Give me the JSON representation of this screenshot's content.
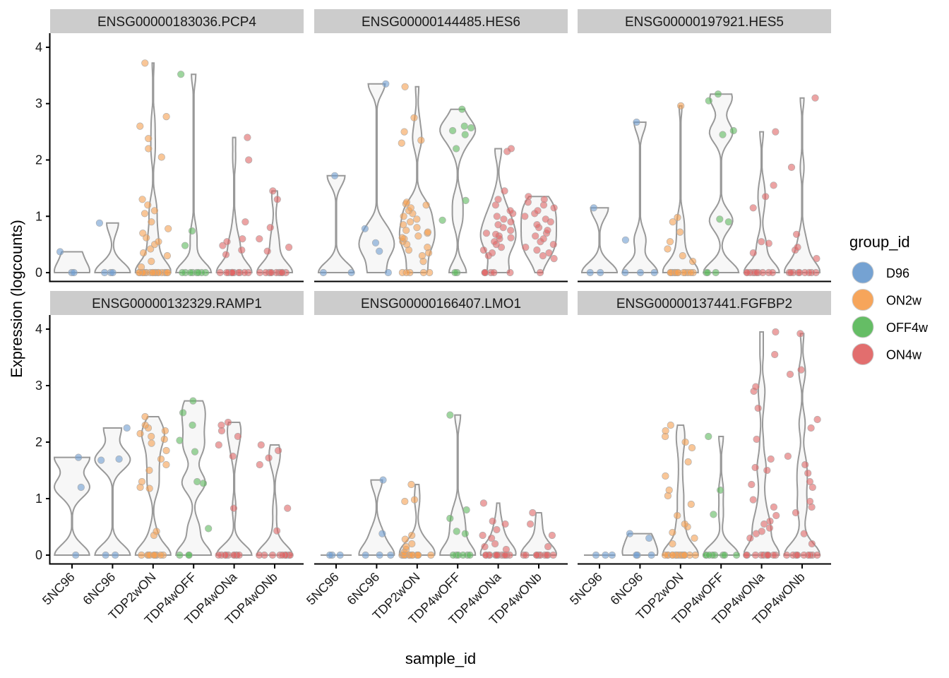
{
  "chart_data": {
    "type": "violin",
    "xlabel": "sample_id",
    "ylabel": "Expression (logcounts)",
    "ylim": [
      -0.15,
      4.25
    ],
    "yticks": [
      0,
      1,
      2,
      3,
      4
    ],
    "samples": [
      "5NC96",
      "6NC96",
      "TDP2wON",
      "TDP4wOFF",
      "TDP4wONa",
      "TDP4wONb"
    ],
    "sample_groups": [
      "D96",
      "D96",
      "ON2w",
      "OFF4w",
      "ON4w",
      "ON4w"
    ],
    "legend": {
      "title": "group_id",
      "entries": [
        {
          "label": "D96",
          "color": "#6E9DD0"
        },
        {
          "label": "ON2w",
          "color": "#F5A052"
        },
        {
          "label": "OFF4w",
          "color": "#5DB95D"
        },
        {
          "label": "ON4w",
          "color": "#E06666"
        }
      ]
    },
    "panels": [
      {
        "title": "ENSG00000183036.PCP4",
        "values": [
          [
            0,
            0,
            0.37
          ],
          [
            0,
            0,
            0,
            0.88
          ],
          [
            0,
            0,
            0,
            0,
            0,
            0,
            0,
            0,
            0,
            0,
            0,
            0,
            0,
            0,
            0,
            0,
            0,
            0.1,
            0.2,
            0.3,
            0.35,
            0.42,
            0.5,
            0.55,
            0.62,
            0.7,
            0.78,
            0.9,
            1.05,
            1.1,
            1.2,
            1.3,
            2.05,
            2.2,
            2.38,
            2.6,
            2.77,
            3.72
          ],
          [
            0,
            0,
            0,
            0,
            0,
            0,
            0,
            0,
            0.48,
            0.74,
            3.52
          ],
          [
            0,
            0,
            0,
            0,
            0,
            0,
            0,
            0,
            0,
            0,
            0,
            0,
            0,
            0.32,
            0.4,
            0.48,
            0.55,
            0.6,
            0.9,
            2.0,
            2.4
          ],
          [
            0,
            0,
            0,
            0,
            0,
            0,
            0,
            0,
            0,
            0,
            0,
            0.38,
            0.45,
            0.6,
            0.8,
            1.3,
            1.45
          ]
        ]
      },
      {
        "title": "ENSG00000144485.HES6",
        "values": [
          [
            0,
            0,
            1.72
          ],
          [
            0,
            0.38,
            0.53,
            0.78,
            3.35
          ],
          [
            0,
            0,
            0,
            0,
            0,
            0.2,
            0.3,
            0.35,
            0.4,
            0.45,
            0.5,
            0.55,
            0.6,
            0.62,
            0.65,
            0.7,
            0.72,
            0.75,
            0.8,
            0.85,
            0.9,
            0.95,
            1.0,
            1.05,
            1.1,
            1.15,
            1.2,
            1.22,
            1.25,
            2.3,
            2.35,
            2.5,
            2.75,
            3.3
          ],
          [
            0,
            0,
            0.93,
            1.28,
            2.2,
            2.45,
            2.52,
            2.57,
            2.6,
            2.9
          ],
          [
            0,
            0,
            0,
            0,
            0,
            0,
            0.3,
            0.35,
            0.4,
            0.45,
            0.5,
            0.55,
            0.6,
            0.62,
            0.65,
            0.68,
            0.7,
            0.75,
            0.8,
            0.85,
            0.9,
            0.95,
            1.0,
            1.05,
            1.1,
            1.2,
            1.3,
            1.45,
            2.15,
            2.2
          ],
          [
            0,
            0.25,
            0.3,
            0.35,
            0.4,
            0.45,
            0.5,
            0.55,
            0.6,
            0.65,
            0.7,
            0.75,
            0.8,
            0.85,
            0.9,
            0.95,
            1.0,
            1.05,
            1.1,
            1.15,
            1.2,
            1.25,
            1.3,
            1.35
          ]
        ]
      },
      {
        "title": "ENSG00000197921.HES5",
        "values": [
          [
            0,
            0,
            1.15
          ],
          [
            0,
            0,
            0,
            0.58,
            2.67
          ],
          [
            0,
            0,
            0,
            0,
            0,
            0,
            0,
            0,
            0,
            0,
            0,
            0,
            0.2,
            0.3,
            0.42,
            0.55,
            0.72,
            0.9,
            0.98,
            2.96
          ],
          [
            0,
            0,
            0,
            0.9,
            0.95,
            2.45,
            2.52,
            3.05,
            3.17
          ],
          [
            0,
            0,
            0,
            0,
            0,
            0,
            0,
            0,
            0,
            0,
            0.35,
            0.52,
            0.55,
            1.15,
            1.35,
            1.55,
            2.5
          ],
          [
            0,
            0,
            0,
            0,
            0,
            0,
            0,
            0,
            0,
            0.25,
            0.4,
            0.45,
            0.68,
            1.87,
            3.1
          ]
        ]
      },
      {
        "title": "ENSG00000132329.RAMP1",
        "values": [
          [
            0,
            1.2,
            1.73
          ],
          [
            0,
            0,
            1.68,
            1.7,
            2.25
          ],
          [
            0,
            0,
            0,
            0,
            0,
            0,
            0,
            0,
            0,
            0,
            0.35,
            0.42,
            1.18,
            1.2,
            1.3,
            1.5,
            1.6,
            1.7,
            1.85,
            1.98,
            2.05,
            2.1,
            2.15,
            2.2,
            2.25,
            2.3,
            2.45
          ],
          [
            0,
            0,
            0,
            0.47,
            1.27,
            1.3,
            1.83,
            2.03,
            2.3,
            2.52,
            2.73
          ],
          [
            0,
            0,
            0,
            0,
            0,
            0,
            0,
            0,
            0,
            0,
            0.83,
            1.75,
            1.95,
            2.1,
            2.2,
            2.3,
            2.35
          ],
          [
            0,
            0,
            0,
            0,
            0,
            0,
            0,
            0,
            0,
            0,
            0.43,
            0.83,
            1.6,
            1.72,
            1.85,
            1.95
          ]
        ]
      },
      {
        "title": "ENSG00000166407.LMO1",
        "values": [
          [
            0,
            0,
            0
          ],
          [
            0,
            0,
            0,
            0.38,
            1.33
          ],
          [
            0,
            0,
            0,
            0,
            0,
            0,
            0,
            0,
            0,
            0,
            0,
            0,
            0.05,
            0.1,
            0.15,
            0.2,
            0.28,
            0.35,
            0.95,
            0.98,
            1.25
          ],
          [
            0,
            0,
            0,
            0,
            0,
            0,
            0.38,
            0.42,
            0.65,
            0.8,
            2.48
          ],
          [
            0,
            0,
            0,
            0,
            0,
            0,
            0,
            0,
            0,
            0,
            0,
            0,
            0,
            0,
            0.1,
            0.15,
            0.2,
            0.3,
            0.35,
            0.45,
            0.55,
            0.6,
            0.92
          ],
          [
            0,
            0,
            0,
            0,
            0,
            0,
            0,
            0,
            0,
            0,
            0.15,
            0.35,
            0.55,
            0.75
          ]
        ]
      },
      {
        "title": "ENSG00000137441.FGFBP2",
        "values": [
          [
            0,
            0,
            0
          ],
          [
            0,
            0,
            0,
            0.3,
            0.38
          ],
          [
            0,
            0,
            0,
            0,
            0,
            0,
            0,
            0,
            0,
            0,
            0,
            0,
            0,
            0,
            0,
            0.2,
            0.3,
            0.4,
            0.5,
            0.55,
            0.7,
            0.9,
            1.05,
            1.15,
            1.4,
            1.65,
            1.9,
            2.0,
            2.1,
            2.2,
            2.3
          ],
          [
            0,
            0,
            0,
            0,
            0,
            0,
            0,
            0,
            0.72,
            1.15,
            2.1
          ],
          [
            0,
            0,
            0,
            0,
            0,
            0,
            0,
            0,
            0,
            0,
            0,
            0.3,
            0.38,
            0.42,
            0.48,
            0.55,
            0.6,
            0.7,
            0.85,
            0.98,
            1.25,
            1.5,
            1.55,
            1.7,
            2.05,
            2.6,
            2.9,
            2.98,
            3.55,
            3.95
          ],
          [
            0,
            0,
            0,
            0,
            0,
            0,
            0,
            0,
            0,
            0,
            0.2,
            0.38,
            0.75,
            0.85,
            0.95,
            1.2,
            1.3,
            1.45,
            1.6,
            1.75,
            2.25,
            2.4,
            3.2,
            3.28,
            3.92
          ]
        ]
      }
    ]
  }
}
